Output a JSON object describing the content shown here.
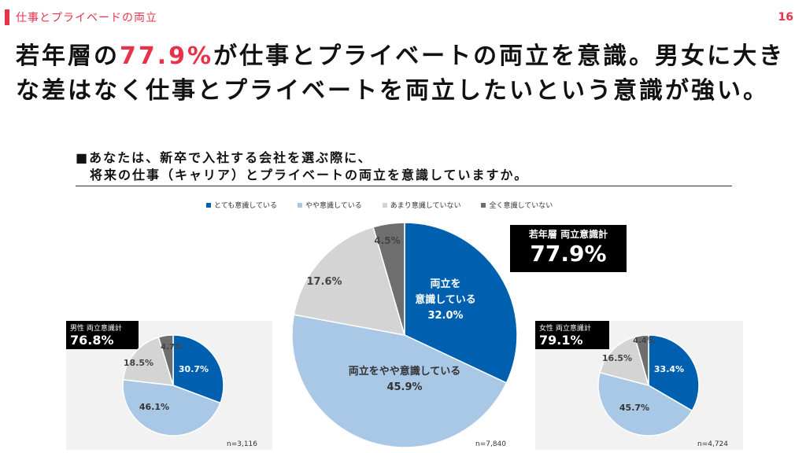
{
  "section_title": "仕事とプライベードの両立",
  "page_number": "16",
  "headline": {
    "pre": "若年層の",
    "highlight": "77.9%",
    "post": "が仕事とプライベートの両立を意識。男女に大きな差はなく仕事とプライベートを両立したいという意識が強い。"
  },
  "question": {
    "line1": "■あなたは、新卒で入社する会社を選ぶ際に、",
    "line2": "　将来の仕事（キャリア）とプライベートの両立を意識していますか。"
  },
  "colors": {
    "accent": "#e8324a",
    "very": "#0060b0",
    "somewhat": "#a9c8e6",
    "not_much": "#d4d4d4",
    "not_at_all": "#6e6e6e"
  },
  "legend": [
    "とても意識している",
    "やや意識している",
    "あまり意識していない",
    "全く意識していない"
  ],
  "chart_data": [
    {
      "type": "pie",
      "id": "overall",
      "badge_label": "若年層 両立意識計",
      "badge_value": "77.9%",
      "n": "n=7,840",
      "categories": [
        "とても意識している",
        "やや意識している",
        "あまり意識していない",
        "全く意識していない"
      ],
      "values": [
        32.0,
        45.9,
        17.6,
        4.5
      ],
      "slice_labels": [
        "両立を\n意識している\n32.0%",
        "両立をやや意識している\n45.9%",
        "17.6%",
        "4.5%"
      ]
    },
    {
      "type": "pie",
      "id": "male",
      "badge_label": "男性 両立意識計",
      "badge_value": "76.8%",
      "n": "n=3,116",
      "categories": [
        "とても意識している",
        "やや意識している",
        "あまり意識していない",
        "全く意識していない"
      ],
      "values": [
        30.7,
        46.1,
        18.5,
        4.7
      ],
      "slice_labels": [
        "30.7%",
        "46.1%",
        "18.5%",
        "4.7%"
      ]
    },
    {
      "type": "pie",
      "id": "female",
      "badge_label": "女性 両立意識計",
      "badge_value": "79.1%",
      "n": "n=4,724",
      "categories": [
        "とても意識している",
        "やや意識している",
        "あまり意識していない",
        "全く意識していない"
      ],
      "values": [
        33.4,
        45.7,
        16.5,
        4.4
      ],
      "slice_labels": [
        "33.4%",
        "45.7%",
        "16.5%",
        "4.4%"
      ]
    }
  ]
}
